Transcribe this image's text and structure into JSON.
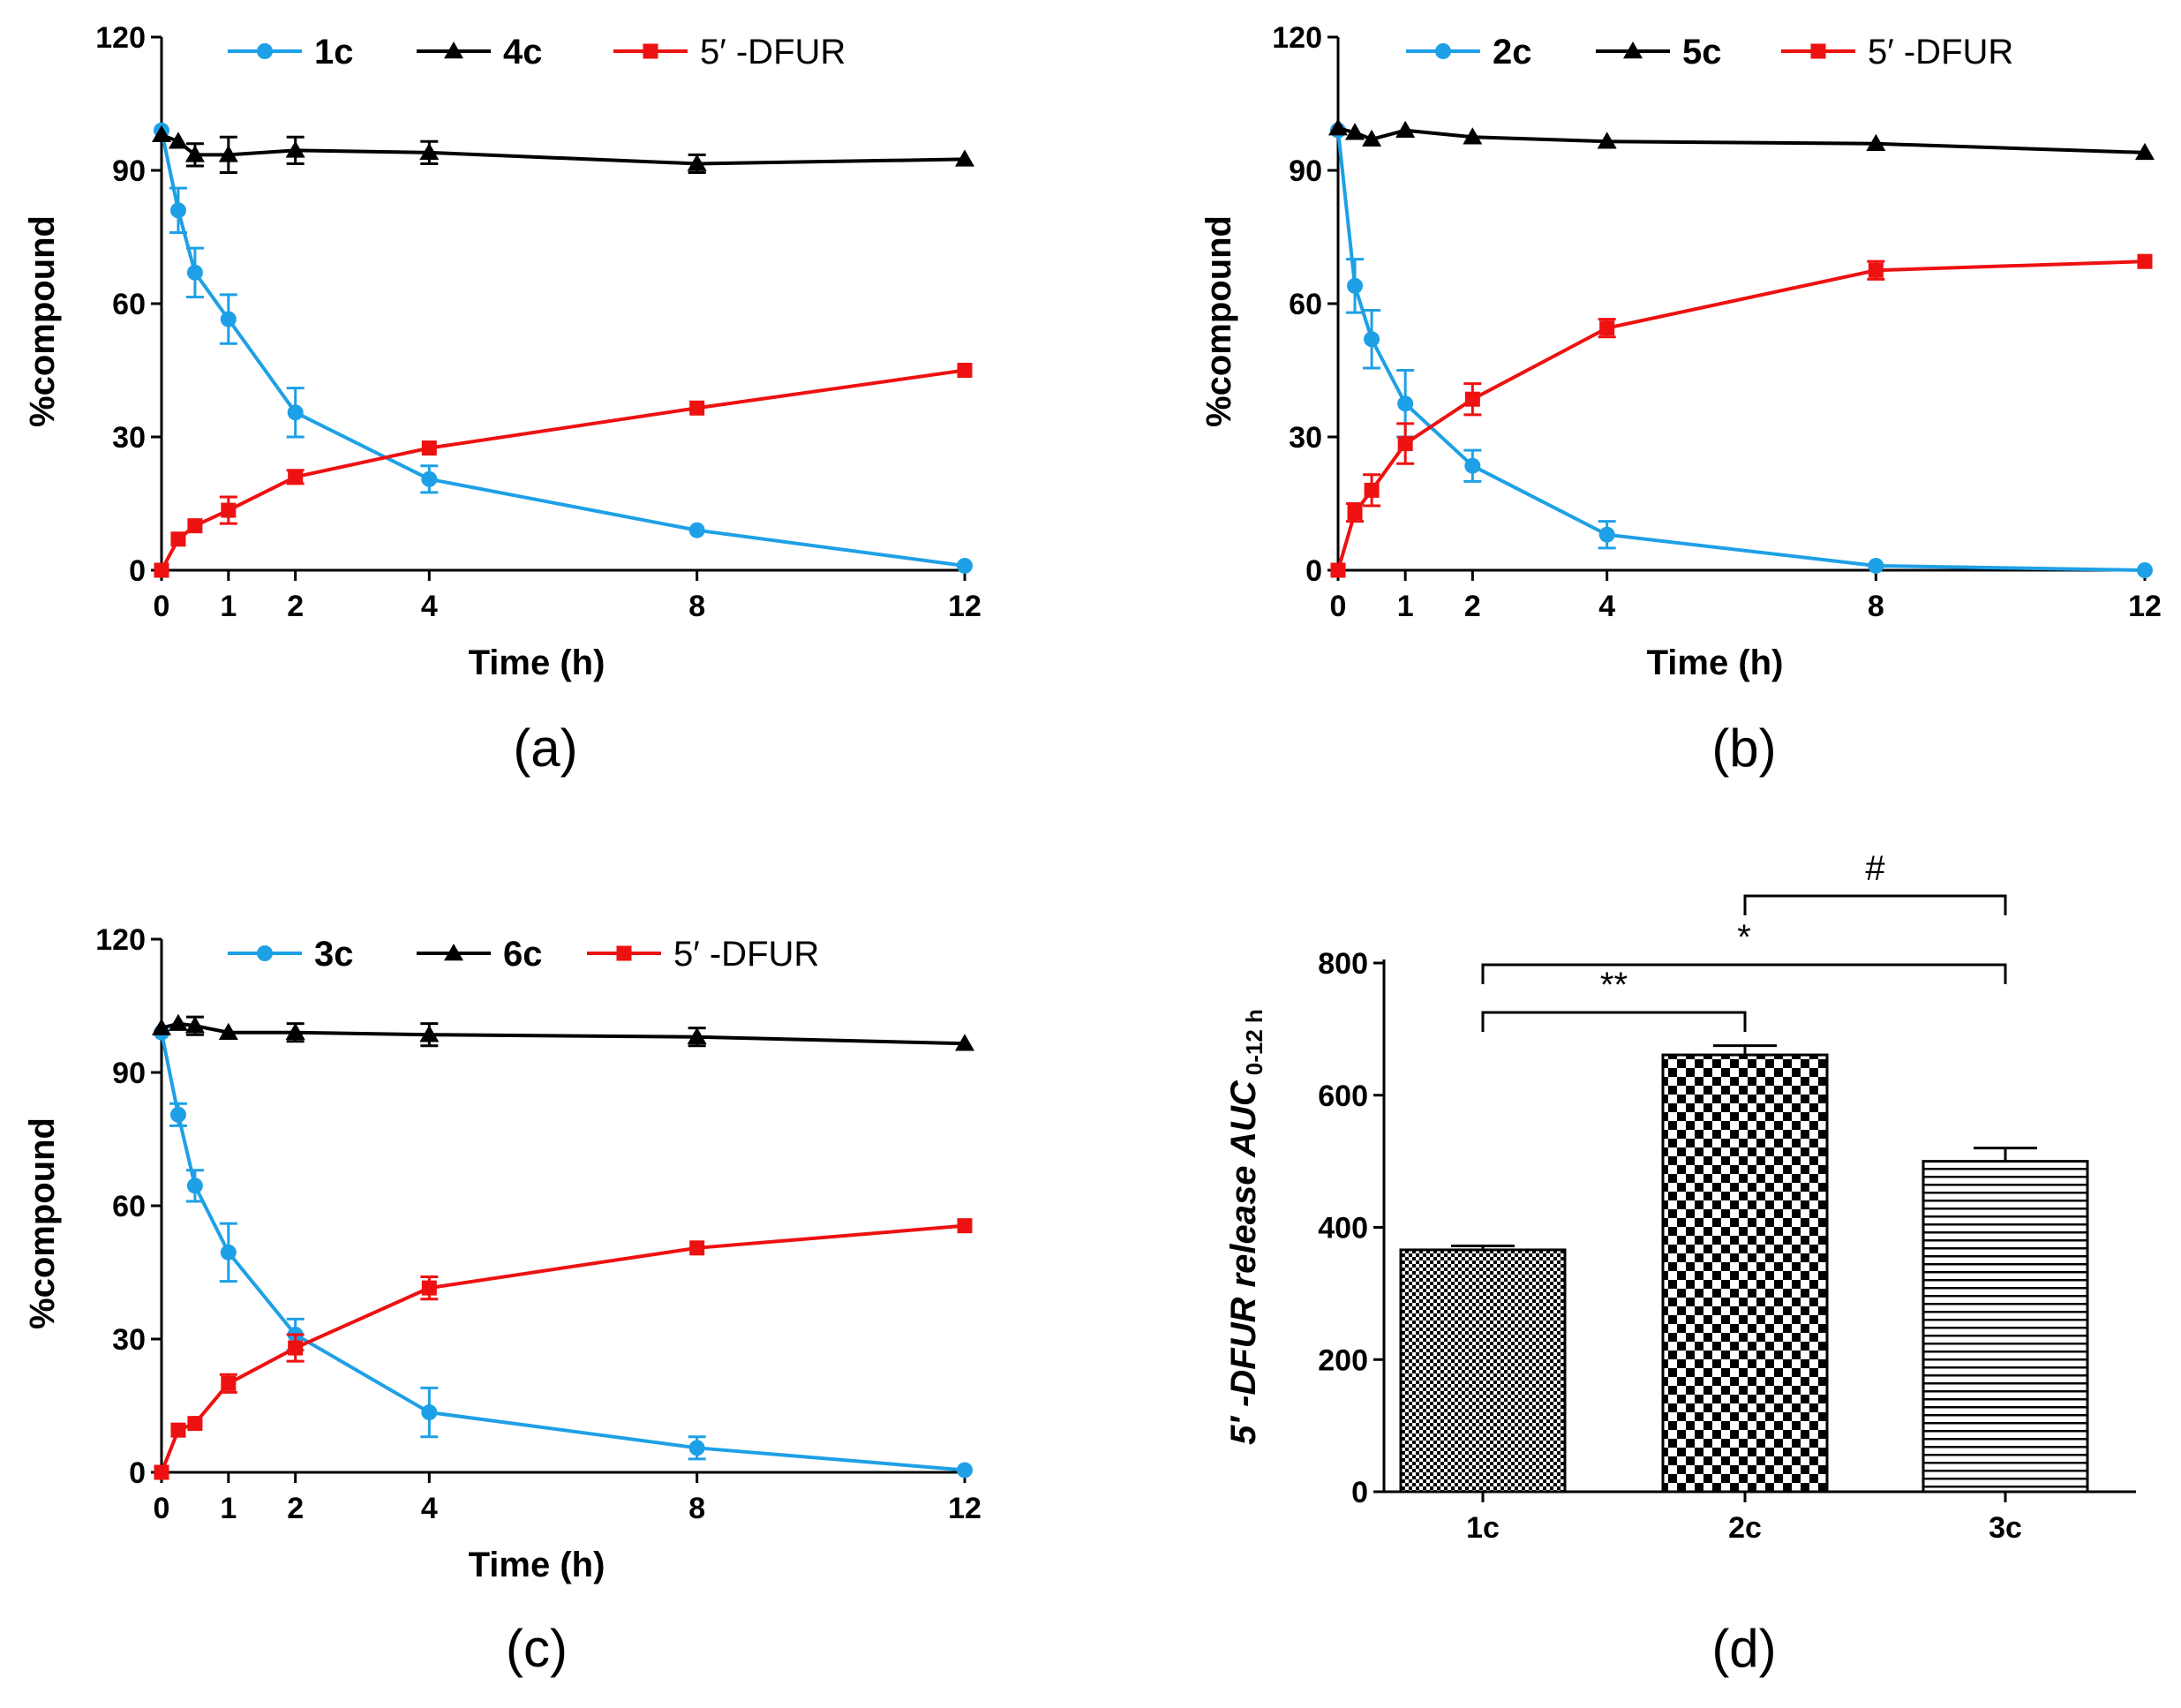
{
  "colors": {
    "blue": "#1ea0e6",
    "black": "#000000",
    "red": "#ee1111"
  },
  "chart_data": [
    {
      "type": "line",
      "panel_label": "(a)",
      "xlabel": "Time (h)",
      "ylabel": "%compound",
      "x": [
        0,
        0.25,
        0.5,
        1,
        2,
        4,
        8,
        12
      ],
      "x_ticks": [
        0,
        1,
        2,
        4,
        8,
        12
      ],
      "xlim": [
        0,
        12
      ],
      "ylim": [
        0,
        120
      ],
      "y_ticks": [
        0,
        30,
        60,
        90,
        120
      ],
      "series": [
        {
          "name": "1c",
          "marker": "circle",
          "color": "#1ea0e6",
          "bold": true,
          "values": [
            99,
            81,
            67,
            56.5,
            35.5,
            20.5,
            9,
            1
          ],
          "errors": [
            0,
            5,
            5.5,
            5.5,
            5.5,
            3,
            0,
            0
          ]
        },
        {
          "name": "4c",
          "marker": "triangle",
          "color": "#000000",
          "bold": true,
          "values": [
            98,
            96.5,
            93.5,
            93.5,
            94.5,
            94,
            91.5,
            92.5
          ],
          "errors": [
            0,
            0,
            2.5,
            4,
            3,
            2.5,
            2,
            0
          ]
        },
        {
          "name": "5′ -DFUR",
          "marker": "square",
          "color": "#ee1111",
          "bold": false,
          "values": [
            0,
            7,
            10,
            13.5,
            21,
            27.5,
            36.5,
            45
          ],
          "errors": [
            0,
            0,
            0,
            3,
            1.5,
            0,
            0,
            0
          ]
        }
      ]
    },
    {
      "type": "line",
      "panel_label": "(b)",
      "xlabel": "Time (h)",
      "ylabel": "%compound",
      "x": [
        0,
        0.25,
        0.5,
        1,
        2,
        4,
        8,
        12
      ],
      "x_ticks": [
        0,
        1,
        2,
        4,
        8,
        12
      ],
      "xlim": [
        0,
        12
      ],
      "ylim": [
        0,
        120
      ],
      "y_ticks": [
        0,
        30,
        60,
        90,
        120
      ],
      "series": [
        {
          "name": "2c",
          "marker": "circle",
          "color": "#1ea0e6",
          "bold": true,
          "values": [
            99,
            64,
            52,
            37.5,
            23.5,
            8,
            1,
            0
          ],
          "errors": [
            0,
            6,
            6.5,
            7.5,
            3.5,
            3,
            0,
            0
          ]
        },
        {
          "name": "5c",
          "marker": "triangle",
          "color": "#000000",
          "bold": true,
          "values": [
            99.5,
            98.5,
            97,
            99,
            97.5,
            96.5,
            96,
            94
          ],
          "errors": [
            0,
            0,
            0,
            0,
            0,
            0,
            0,
            0
          ]
        },
        {
          "name": "5′ -DFUR",
          "marker": "square",
          "color": "#ee1111",
          "bold": false,
          "values": [
            0,
            13,
            18,
            28.5,
            38.5,
            54.5,
            67.5,
            69.5
          ],
          "errors": [
            0,
            2,
            3.5,
            4.5,
            3.5,
            2,
            2,
            0
          ]
        }
      ]
    },
    {
      "type": "line",
      "panel_label": "(c)",
      "xlabel": "Time (h)",
      "ylabel": "%compound",
      "x": [
        0,
        0.25,
        0.5,
        1,
        2,
        4,
        8,
        12
      ],
      "x_ticks": [
        0,
        1,
        2,
        4,
        8,
        12
      ],
      "xlim": [
        0,
        12
      ],
      "ylim": [
        0,
        120
      ],
      "y_ticks": [
        0,
        30,
        60,
        90,
        120
      ],
      "series": [
        {
          "name": "3c",
          "marker": "circle",
          "color": "#1ea0e6",
          "bold": true,
          "values": [
            99,
            80.5,
            64.5,
            49.5,
            31,
            13.5,
            5.5,
            0.5
          ],
          "errors": [
            0,
            2.5,
            3.5,
            6.5,
            3.5,
            5.5,
            2.5,
            0
          ]
        },
        {
          "name": "6c",
          "marker": "triangle",
          "color": "#000000",
          "bold": true,
          "values": [
            100,
            101,
            100.5,
            99,
            99,
            98.5,
            98,
            96.5
          ],
          "errors": [
            0,
            0,
            2,
            0,
            2,
            2.5,
            2,
            0
          ]
        },
        {
          "name": "5′ -DFUR",
          "marker": "square",
          "color": "#ee1111",
          "bold": false,
          "values": [
            0,
            9.5,
            11,
            20,
            28,
            41.5,
            50.5,
            55.5
          ],
          "errors": [
            0,
            0,
            0,
            2,
            3,
            2.5,
            0,
            0
          ]
        }
      ]
    },
    {
      "type": "bar",
      "panel_label": "(d)",
      "ylabel_main": "5′ -DFUR release AUC",
      "ylabel_sub": "0-12 h",
      "categories": [
        "1c",
        "2c",
        "3c"
      ],
      "values": [
        366,
        661,
        500
      ],
      "errors": [
        6,
        14,
        20
      ],
      "patterns": [
        "fine-check",
        "coarse-check",
        "horizontal-lines"
      ],
      "ylim": [
        0,
        800
      ],
      "y_ticks": [
        0,
        200,
        400,
        600,
        800
      ],
      "significance": [
        {
          "from": "1c",
          "to": "2c",
          "label": "**"
        },
        {
          "from": "1c",
          "to": "3c",
          "label": "*"
        },
        {
          "from": "2c",
          "to": "3c",
          "label": "#"
        }
      ]
    }
  ]
}
